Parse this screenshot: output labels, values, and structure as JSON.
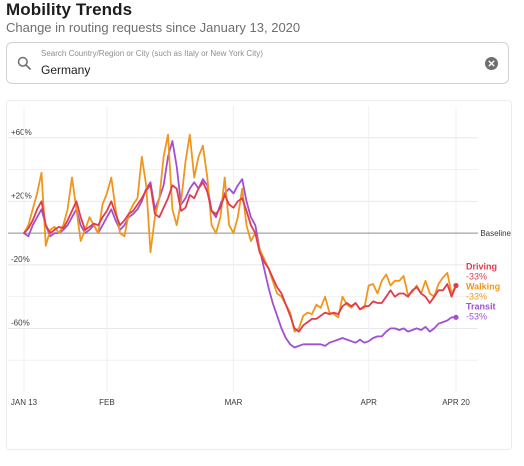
{
  "header": {
    "title": "Mobility Trends",
    "subtitle": "Change in routing requests since January 13, 2020"
  },
  "search": {
    "placeholder": "Search Country/Region or City (such as Italy or New York City)",
    "value": "Germany",
    "search_icon": "search-icon",
    "clear_icon": "clear-icon"
  },
  "chart_data": {
    "type": "line",
    "y_tick_labels": [
      "+60%",
      "+20%",
      "-20%",
      "-60%"
    ],
    "y_ticks": [
      60,
      20,
      -20,
      -60
    ],
    "ylim": [
      -100,
      80
    ],
    "baseline": {
      "value": 0,
      "label": "Baseline"
    },
    "x_tick_labels": [
      "JAN 13",
      "FEB",
      "MAR",
      "APR",
      "APR 20"
    ],
    "x_ticks": [
      0,
      19,
      48,
      79,
      99
    ],
    "xlim": [
      0,
      99
    ],
    "grid": true,
    "series": [
      {
        "name": "Driving",
        "end_label": "-33%",
        "color": "#e03c4c",
        "values": [
          0,
          3,
          8,
          15,
          20,
          5,
          0,
          2,
          4,
          3,
          8,
          14,
          20,
          10,
          2,
          4,
          6,
          5,
          10,
          14,
          20,
          12,
          5,
          8,
          12,
          14,
          18,
          22,
          27,
          30,
          12,
          10,
          16,
          22,
          30,
          28,
          14,
          16,
          24,
          22,
          28,
          32,
          26,
          14,
          12,
          16,
          24,
          18,
          16,
          20,
          22,
          14,
          5,
          0,
          -12,
          -18,
          -22,
          -28,
          -34,
          -38,
          -45,
          -52,
          -60,
          -62,
          -58,
          -56,
          -54,
          -54,
          -52,
          -50,
          -51,
          -50,
          -51,
          -46,
          -44,
          -46,
          -44,
          -48,
          -46,
          -46,
          -43,
          -44,
          -44,
          -40,
          -36,
          -40,
          -38,
          -38,
          -40,
          -36,
          -34,
          -38,
          -40,
          -44,
          -40,
          -36,
          -36,
          -32,
          -40,
          -33
        ]
      },
      {
        "name": "Walking",
        "end_label": "-33%",
        "color": "#f0961e",
        "values": [
          0,
          5,
          15,
          25,
          38,
          -8,
          2,
          4,
          0,
          5,
          15,
          35,
          15,
          -5,
          2,
          10,
          5,
          0,
          18,
          25,
          35,
          15,
          0,
          -2,
          12,
          18,
          22,
          48,
          30,
          -12,
          10,
          22,
          48,
          62,
          15,
          5,
          20,
          45,
          62,
          35,
          48,
          55,
          35,
          5,
          0,
          10,
          35,
          5,
          0,
          10,
          28,
          5,
          -5,
          0,
          -10,
          -16,
          -22,
          -30,
          -38,
          -40,
          -45,
          -50,
          -62,
          -60,
          -52,
          -50,
          -51,
          -45,
          -47,
          -40,
          -50,
          -51,
          -53,
          -40,
          -45,
          -47,
          -44,
          -48,
          -47,
          -33,
          -32,
          -38,
          -30,
          -26,
          -33,
          -30,
          -30,
          -27,
          -39,
          -37,
          -33,
          -38,
          -30,
          -38,
          -40,
          -32,
          -28,
          -25,
          -38,
          -33
        ]
      },
      {
        "name": "Transit",
        "end_label": "-53%",
        "color": "#a050d2",
        "values": [
          0,
          -2,
          5,
          10,
          15,
          5,
          -2,
          0,
          0,
          2,
          5,
          10,
          15,
          5,
          0,
          2,
          5,
          0,
          5,
          10,
          15,
          8,
          2,
          5,
          10,
          12,
          15,
          20,
          28,
          32,
          15,
          22,
          30,
          48,
          58,
          42,
          18,
          22,
          28,
          32,
          28,
          34,
          30,
          14,
          10,
          18,
          25,
          28,
          25,
          30,
          34,
          20,
          10,
          5,
          -10,
          -22,
          -34,
          -44,
          -52,
          -60,
          -66,
          -70,
          -72,
          -71,
          -70,
          -70,
          -70,
          -70,
          -70,
          -71,
          -69,
          -68,
          -67,
          -66,
          -67,
          -68,
          -69,
          -67,
          -69,
          -68,
          -66,
          -65,
          -65,
          -62,
          -60,
          -60,
          -61,
          -60,
          -62,
          -61,
          -60,
          -61,
          -59,
          -62,
          -60,
          -57,
          -56,
          -55,
          -53,
          -53
        ]
      }
    ]
  }
}
